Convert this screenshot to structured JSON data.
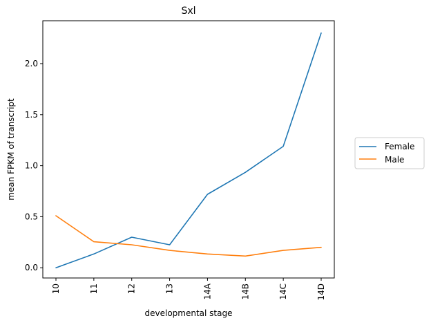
{
  "chart_data": {
    "type": "line",
    "title": "Sxl",
    "xlabel": "developmental stage",
    "ylabel": "mean FPKM of transcript",
    "categories": [
      "10",
      "11",
      "12",
      "13",
      "14A",
      "14B",
      "14C",
      "14D"
    ],
    "series": [
      {
        "name": "Female",
        "color": "#1f77b4",
        "values": [
          0.0,
          0.135,
          0.3,
          0.225,
          0.72,
          0.935,
          1.19,
          2.3
        ]
      },
      {
        "name": "Male",
        "color": "#ff7f0e",
        "values": [
          0.51,
          0.255,
          0.225,
          0.17,
          0.135,
          0.115,
          0.17,
          0.2
        ]
      }
    ],
    "yticks": [
      "0.0",
      "0.5",
      "1.0",
      "1.5",
      "2.0"
    ],
    "ylim": [
      -0.1,
      2.42
    ],
    "grid": false,
    "legend": "outside-right"
  }
}
